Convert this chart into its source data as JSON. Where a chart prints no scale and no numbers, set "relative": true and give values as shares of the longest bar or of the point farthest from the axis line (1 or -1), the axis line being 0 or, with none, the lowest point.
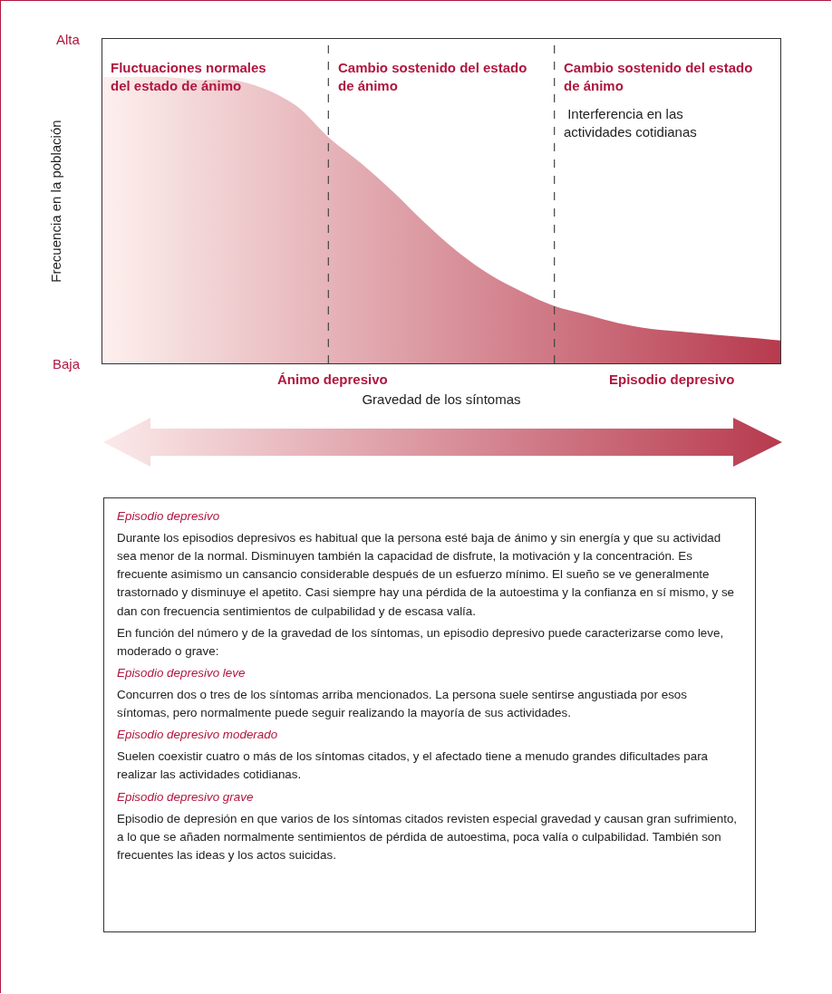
{
  "chart_data": {
    "type": "area",
    "relative": true,
    "xlabel": "Gravedad de los síntomas",
    "ylabel": "Frecuencia en la población",
    "categories": [
      null,
      null,
      null,
      null,
      null,
      null,
      null,
      null,
      null,
      null,
      null,
      null,
      null,
      null,
      null,
      null,
      null,
      null,
      null,
      null,
      null,
      null
    ],
    "series": [
      {
        "color": "#b73a4e",
        "values": [
          1,
          1,
          1,
          0.99,
          0.99,
          0.96,
          0.9,
          0.79,
          0.7,
          0.6,
          0.49,
          0.39,
          0.31,
          0.25,
          0.2,
          0.17,
          0.14,
          0.12,
          0.11,
          0.1,
          0.09,
          0.08
        ]
      }
    ],
    "grid": false,
    "annotations": [
      "Fluctuaciones normales\ndel estado de ánimo",
      "Cambio sostenido del estado\nde ánimo",
      "Cambio sostenido del estado\nde ánimo",
      " Interferencia en las\nactividades cotidianas",
      "Alta",
      "Baja",
      "Ánimo depresivo",
      "Episodio depresivo",
      "Episodio depresivo",
      "Durante los episodios depresivos es habitual que la persona esté baja de ánimo y sin energía y que su actividad sea menor de la normal.  Disminuyen también la capacidad de disfrute, la motivación y la concentración.  Es frecuente asimismo un cansancio considerable después de un esfuerzo mínimo.  El sueño se ve generalmente trastornado y disminuye el apetito.  Casi siempre hay una pérdida de la autoestima y la confianza en sí mismo, y se dan con frecuencia sentimientos de culpabilidad y de escasa valía.",
      "En función del número y de la gravedad de los síntomas, un episodio depresivo puede caracterizarse como leve, moderado o grave:",
      "Episodio depresivo leve",
      "Concurren dos o tres de los síntomas arriba mencionados.  La persona suele sentirse angustiada por esos síntomas, pero normalmente puede seguir realizando la mayoría de sus actividades.",
      "Episodio depresivo moderado",
      "Suelen coexistir cuatro o más de los síntomas citados, y el afectado tiene a menudo grandes dificultades para realizar las actividades cotidianas.",
      "Episodio depresivo grave",
      "Episodio de depresión en que varios de los síntomas citados revisten especial gravedad y causan gran sufrimiento, a lo que se añaden normalmente sentimientos de pérdida de autoestima, poca valía o culpabilidad.  También son frecuentes las ideas y los actos suicidas."
    ]
  }
}
